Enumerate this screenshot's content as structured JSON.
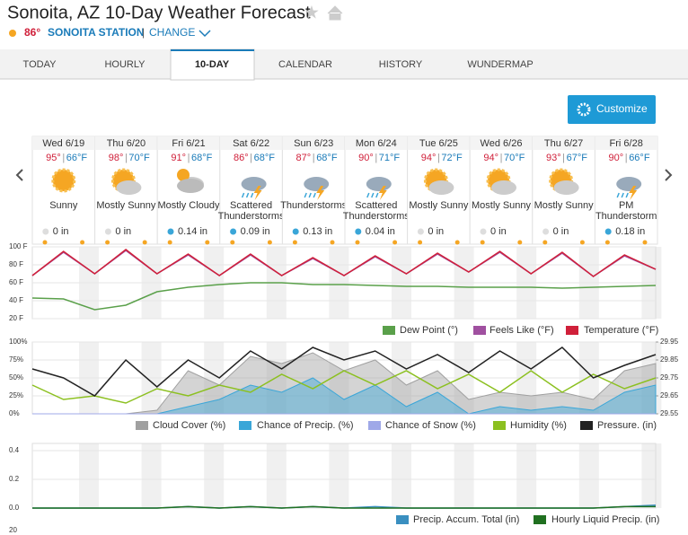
{
  "header": {
    "title": "Sonoita, AZ 10-Day Weather Forecast",
    "current_temp": "86°",
    "station": "SONOITA STATION",
    "separator": "|",
    "change": "CHANGE"
  },
  "tabs": [
    "TODAY",
    "HOURLY",
    "10-DAY",
    "CALENDAR",
    "HISTORY",
    "WUNDERMAP"
  ],
  "button": "Customize",
  "days": [
    {
      "date": "Wed 6/19",
      "high": "95°",
      "low": "66°F",
      "condition": [
        "Sunny"
      ],
      "precip": "0 in"
    },
    {
      "date": "Thu 6/20",
      "high": "98°",
      "low": "70°F",
      "condition": [
        "Mostly Sunny"
      ],
      "precip": "0 in"
    },
    {
      "date": "Fri 6/21",
      "high": "91°",
      "low": "68°F",
      "condition": [
        "Mostly Cloudy"
      ],
      "precip": "0.14 in"
    },
    {
      "date": "Sat 6/22",
      "high": "86°",
      "low": "68°F",
      "condition": [
        "Scattered",
        "Thunderstorms"
      ],
      "precip": "0.09 in"
    },
    {
      "date": "Sun 6/23",
      "high": "87°",
      "low": "68°F",
      "condition": [
        "Thunderstorms"
      ],
      "precip": "0.13 in"
    },
    {
      "date": "Mon 6/24",
      "high": "90°",
      "low": "71°F",
      "condition": [
        "Scattered",
        "Thunderstorms"
      ],
      "precip": "0.04 in"
    },
    {
      "date": "Tue 6/25",
      "high": "94°",
      "low": "72°F",
      "condition": [
        "Mostly Sunny"
      ],
      "precip": "0 in"
    },
    {
      "date": "Wed 6/26",
      "high": "94°",
      "low": "70°F",
      "condition": [
        "Mostly Sunny"
      ],
      "precip": "0 in"
    },
    {
      "date": "Thu 6/27",
      "high": "93°",
      "low": "67°F",
      "condition": [
        "Mostly Sunny"
      ],
      "precip": "0 in"
    },
    {
      "date": "Fri 6/28",
      "high": "90°",
      "low": "66°F",
      "condition": [
        "PM",
        "Thunderstorm"
      ],
      "precip": "0.18 in"
    }
  ],
  "charts": [
    {
      "type": "line",
      "ylim": [
        20,
        100
      ],
      "yticks": [
        {
          "value": 100,
          "label": "100 F"
        },
        {
          "value": 80,
          "label": "80 F"
        },
        {
          "value": 60,
          "label": "60 F"
        },
        {
          "value": 40,
          "label": "40 F"
        },
        {
          "value": 20,
          "label": "20 F"
        }
      ],
      "series": [
        {
          "name": "Dew Point (°)",
          "color": "#5aa04a",
          "values": [
            43,
            42,
            30,
            35,
            50,
            55,
            58,
            60,
            60,
            58,
            58,
            57,
            56,
            56,
            55,
            55,
            55,
            54,
            55,
            56,
            57
          ]
        },
        {
          "name": "Feels Like (°F)",
          "color": "#a050a0",
          "values": [
            68,
            94,
            70,
            96,
            70,
            91,
            68,
            91,
            68,
            87,
            68,
            89,
            70,
            92,
            72,
            94,
            70,
            93,
            67,
            90,
            75
          ]
        },
        {
          "name": "Temperature (°F)",
          "color": "#d0203a",
          "values": [
            68,
            95,
            70,
            97,
            70,
            92,
            68,
            92,
            68,
            88,
            68,
            90,
            70,
            93,
            72,
            95,
            70,
            94,
            67,
            91,
            75
          ]
        }
      ]
    },
    {
      "type": "mixed",
      "ylim": [
        0,
        100
      ],
      "y2lim": [
        29.55,
        29.95
      ],
      "yticks": [
        {
          "value": 100,
          "label": "100%"
        },
        {
          "value": 75,
          "label": "75%"
        },
        {
          "value": 50,
          "label": "50%"
        },
        {
          "value": 25,
          "label": "25%"
        },
        {
          "value": 0,
          "label": "0%"
        }
      ],
      "y2ticks": [
        29.95,
        29.85,
        29.75,
        29.65,
        29.55
      ],
      "series": [
        {
          "name": "Cloud Cover (%)",
          "color": "#a0a0a0",
          "kind": "area",
          "values": [
            0,
            0,
            0,
            0,
            5,
            60,
            40,
            80,
            70,
            85,
            60,
            75,
            40,
            60,
            20,
            30,
            25,
            30,
            20,
            60,
            70
          ]
        },
        {
          "name": "Chance of Precip. (%)",
          "color": "#3aa6d8",
          "kind": "area",
          "values": [
            0,
            0,
            0,
            0,
            0,
            10,
            20,
            40,
            30,
            50,
            20,
            40,
            10,
            30,
            0,
            10,
            5,
            10,
            5,
            30,
            40
          ]
        },
        {
          "name": "Chance of Snow (%)",
          "color": "#9fa8e8",
          "kind": "area",
          "values": [
            0,
            0,
            0,
            0,
            0,
            0,
            0,
            0,
            0,
            0,
            0,
            0,
            0,
            0,
            0,
            0,
            0,
            0,
            0,
            0,
            0
          ]
        },
        {
          "name": "Humidity (%)",
          "color": "#8cc020",
          "kind": "line",
          "values": [
            40,
            20,
            25,
            15,
            35,
            25,
            40,
            30,
            55,
            35,
            60,
            40,
            60,
            35,
            55,
            30,
            60,
            30,
            55,
            35,
            50
          ]
        },
        {
          "name": "Pressure. (in)",
          "color": "#222222",
          "kind": "line",
          "axis": "y2",
          "values": [
            29.8,
            29.75,
            29.65,
            29.85,
            29.7,
            29.85,
            29.75,
            29.9,
            29.8,
            29.92,
            29.85,
            29.9,
            29.8,
            29.88,
            29.78,
            29.9,
            29.8,
            29.92,
            29.75,
            29.82,
            29.88
          ]
        }
      ]
    },
    {
      "type": "line",
      "ylim": [
        0,
        0.45
      ],
      "yticks": [
        0.4,
        0.2,
        {
          "value": 0,
          "label": "0.0"
        }
      ],
      "series": [
        {
          "name": "Precip. Accum. Total (in)",
          "color": "#3a8fc0",
          "values": [
            0,
            0,
            0,
            0,
            0,
            0.01,
            0,
            0.01,
            0,
            0.01,
            0,
            0.01,
            0,
            0,
            0,
            0,
            0,
            0,
            0,
            0.01,
            0.02
          ]
        },
        {
          "name": "Hourly Liquid Precip. (in)",
          "color": "#207020",
          "values": [
            0,
            0,
            0,
            0,
            0,
            0.01,
            0,
            0.01,
            0,
            0.01,
            0,
            0,
            0,
            0,
            0,
            0,
            0,
            0,
            0,
            0.01,
            0.01
          ]
        }
      ]
    }
  ],
  "footer_tick": "20"
}
